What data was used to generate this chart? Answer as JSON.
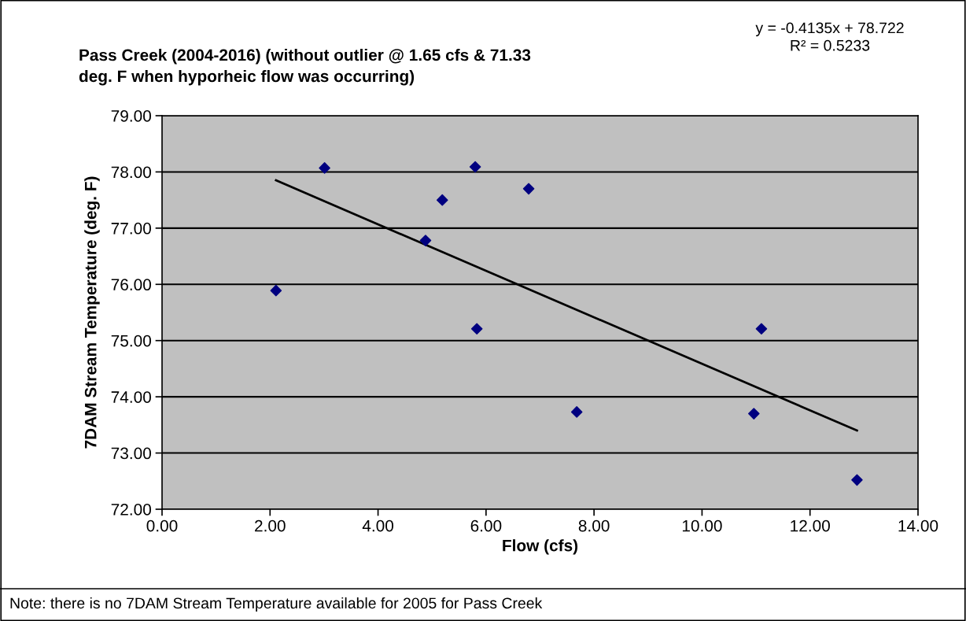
{
  "chart_data": {
    "type": "scatter",
    "title": "Pass Creek (2004-2016) (without outlier @ 1.65 cfs & 71.33\ndeg. F when hyporheic flow was occurring)",
    "xlabel": "Flow (cfs)",
    "ylabel": "7DAM Stream Temperature (deg. F)",
    "annotations": [
      "y = -0.4135x + 78.722\nR² = 0.5233",
      "Note: there is no 7DAM Stream Temperature available for 2005 for Pass Creek"
    ],
    "series": [
      {
        "marker": "diamond",
        "color": "#000080",
        "x": [
          2.11,
          3.01,
          4.88,
          5.19,
          5.8,
          5.83,
          6.79,
          7.68,
          10.96,
          11.1,
          12.87
        ],
        "values": [
          75.89,
          78.07,
          76.78,
          77.5,
          78.09,
          75.21,
          77.7,
          73.73,
          73.7,
          75.21,
          72.52
        ]
      },
      {
        "type": "line",
        "marker": "none",
        "color": "#000000",
        "x": [
          2.11,
          12.87
        ],
        "values": [
          77.85,
          73.4
        ]
      }
    ],
    "xlim": [
      0,
      14
    ],
    "ylim": [
      72,
      79
    ],
    "xticks": [
      {
        "value": 0,
        "label": "0.00"
      },
      {
        "value": 2,
        "label": "2.00"
      },
      {
        "value": 4,
        "label": "4.00"
      },
      {
        "value": 6,
        "label": "6.00"
      },
      {
        "value": 8,
        "label": "8.00"
      },
      {
        "value": 10,
        "label": "10.00"
      },
      {
        "value": 12,
        "label": "12.00"
      },
      {
        "value": 14,
        "label": "14.00"
      }
    ],
    "yticks": [
      {
        "value": 72,
        "label": "72.00"
      },
      {
        "value": 73,
        "label": "73.00"
      },
      {
        "value": 74,
        "label": "74.00"
      },
      {
        "value": 75,
        "label": "75.00"
      },
      {
        "value": 76,
        "label": "76.00"
      },
      {
        "value": 77,
        "label": "77.00"
      },
      {
        "value": 78,
        "label": "78.00"
      },
      {
        "value": 79,
        "label": "79.00"
      }
    ],
    "grid": "y"
  }
}
